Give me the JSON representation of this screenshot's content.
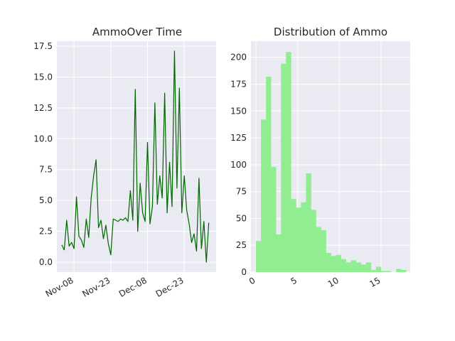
{
  "chart_data": [
    {
      "type": "line",
      "title": "AmmoOver Time",
      "xlabel": "",
      "ylabel": "",
      "x_ticks": [
        "Nov-08",
        "Nov-23",
        "Dec-08",
        "Dec-23"
      ],
      "y_ticks": [
        "0.0",
        "2.5",
        "5.0",
        "7.5",
        "10.0",
        "12.5",
        "15.0",
        "17.5"
      ],
      "xlim": [
        "2023-11-01",
        "2024-01-05"
      ],
      "ylim": [
        -0.8,
        17.9
      ],
      "grid": true,
      "series": [
        {
          "color": "#006400",
          "points": [
            [
              "2023-11-03",
              1.4
            ],
            [
              "2023-11-04",
              1.0
            ],
            [
              "2023-11-05",
              3.4
            ],
            [
              "2023-11-06",
              1.3
            ],
            [
              "2023-11-07",
              1.6
            ],
            [
              "2023-11-08",
              1.1
            ],
            [
              "2023-11-09",
              5.3
            ],
            [
              "2023-11-10",
              2.1
            ],
            [
              "2023-11-11",
              1.8
            ],
            [
              "2023-11-12",
              1.2
            ],
            [
              "2023-11-13",
              3.5
            ],
            [
              "2023-11-14",
              2.0
            ],
            [
              "2023-11-15",
              5.2
            ],
            [
              "2023-11-16",
              7.0
            ],
            [
              "2023-11-17",
              8.3
            ],
            [
              "2023-11-18",
              2.8
            ],
            [
              "2023-11-19",
              3.4
            ],
            [
              "2023-11-20",
              1.9
            ],
            [
              "2023-11-21",
              3.0
            ],
            [
              "2023-11-22",
              1.5
            ],
            [
              "2023-11-23",
              0.6
            ],
            [
              "2023-11-24",
              3.5
            ],
            [
              "2023-11-25",
              3.4
            ],
            [
              "2023-11-26",
              3.3
            ],
            [
              "2023-11-27",
              3.5
            ],
            [
              "2023-11-28",
              3.4
            ],
            [
              "2023-11-29",
              3.6
            ],
            [
              "2023-11-30",
              3.3
            ],
            [
              "2023-12-01",
              5.8
            ],
            [
              "2023-12-02",
              3.4
            ],
            [
              "2023-12-03",
              14.0
            ],
            [
              "2023-12-04",
              2.5
            ],
            [
              "2023-12-05",
              6.4
            ],
            [
              "2023-12-06",
              4.0
            ],
            [
              "2023-12-07",
              3.3
            ],
            [
              "2023-12-08",
              9.7
            ],
            [
              "2023-12-09",
              3.1
            ],
            [
              "2023-12-10",
              4.5
            ],
            [
              "2023-12-11",
              12.9
            ],
            [
              "2023-12-12",
              4.7
            ],
            [
              "2023-12-13",
              7.0
            ],
            [
              "2023-12-14",
              5.2
            ],
            [
              "2023-12-15",
              13.7
            ],
            [
              "2023-12-16",
              4.0
            ],
            [
              "2023-12-17",
              8.1
            ],
            [
              "2023-12-18",
              4.5
            ],
            [
              "2023-12-19",
              17.1
            ],
            [
              "2023-12-20",
              6.0
            ],
            [
              "2023-12-21",
              14.1
            ],
            [
              "2023-12-22",
              4.0
            ],
            [
              "2023-12-23",
              7.0
            ],
            [
              "2023-12-24",
              4.2
            ],
            [
              "2023-12-25",
              3.1
            ],
            [
              "2023-12-26",
              1.6
            ],
            [
              "2023-12-27",
              2.3
            ],
            [
              "2023-12-28",
              0.9
            ],
            [
              "2023-12-29",
              6.8
            ],
            [
              "2023-12-30",
              1.1
            ],
            [
              "2023-12-31",
              3.3
            ],
            [
              "2024-01-01",
              0.0
            ],
            [
              "2024-01-02",
              3.2
            ]
          ]
        }
      ]
    },
    {
      "type": "bar",
      "title": "Distribution of Ammo",
      "xlabel": "",
      "ylabel": "",
      "x_ticks": [
        "0",
        "5",
        "10",
        "15"
      ],
      "y_ticks": [
        "0",
        "25",
        "50",
        "75",
        "100",
        "125",
        "150",
        "175",
        "200"
      ],
      "xlim": [
        -0.6,
        18.5
      ],
      "ylim": [
        0,
        215
      ],
      "grid": true,
      "bar_color": "#90ee90",
      "bin_edges": [
        0,
        0.6,
        1.2,
        1.8,
        2.4,
        3.0,
        3.6,
        4.2,
        4.8,
        5.4,
        6.0,
        6.6,
        7.2,
        7.8,
        8.4,
        9.0,
        9.6,
        10.2,
        10.8,
        11.4,
        12.0,
        12.6,
        13.2,
        13.8,
        14.4,
        15.0,
        15.6,
        16.2,
        16.8,
        17.4,
        18.0
      ],
      "values": [
        29,
        142,
        182,
        98,
        35,
        194,
        205,
        68,
        60,
        65,
        92,
        58,
        42,
        39,
        18,
        15,
        16,
        12,
        9,
        11,
        9,
        7,
        9,
        2,
        5,
        1,
        1,
        0,
        3,
        2
      ]
    }
  ]
}
